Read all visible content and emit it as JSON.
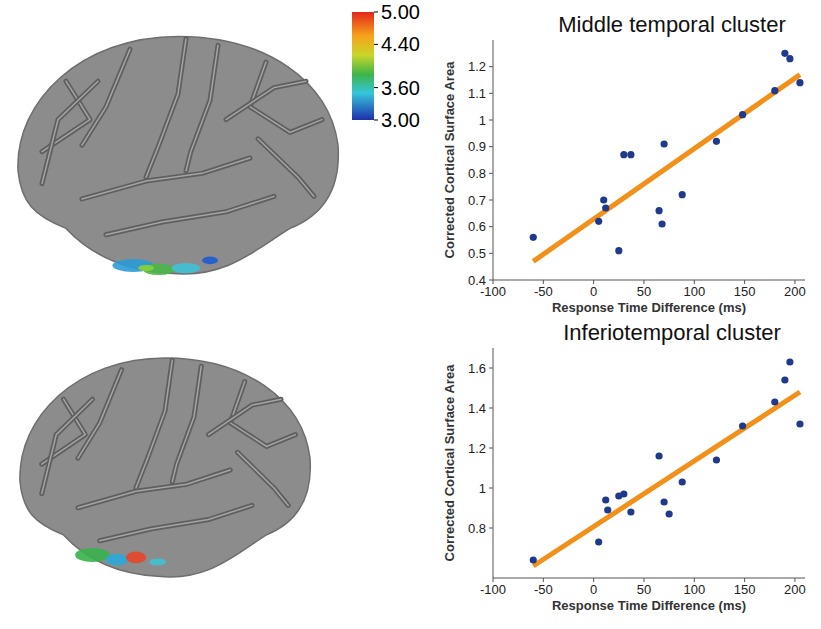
{
  "chart_data": [
    {
      "type": "scatter",
      "title": "Middle temporal cluster",
      "x_label": "Response Time Difference (ms)",
      "y_label": "Corrected Cortical Surface Area",
      "x": [
        -60,
        5,
        10,
        12,
        25,
        30,
        37,
        65,
        68,
        70,
        88,
        122,
        148,
        180,
        190,
        195,
        205
      ],
      "values": [
        0.56,
        0.62,
        0.7,
        0.67,
        0.51,
        0.87,
        0.87,
        0.66,
        0.61,
        0.91,
        0.72,
        0.92,
        1.02,
        1.11,
        1.25,
        1.23,
        1.14
      ],
      "color": "#1f3a8a",
      "fit": {
        "x": [
          -60,
          205
        ],
        "values": [
          0.47,
          1.17
        ],
        "color": "#f39019"
      },
      "xlim": [
        -100,
        210
      ],
      "xticks": [
        -100,
        -50,
        0,
        50,
        100,
        150,
        200
      ],
      "ylim": [
        0.4,
        1.3
      ],
      "yticks": [
        0.4,
        0.5,
        0.6,
        0.7,
        0.8,
        0.9,
        1,
        1.1,
        1.2
      ]
    },
    {
      "type": "scatter",
      "title": "Inferiotemporal cluster",
      "x_label": "Response Time Difference (ms)",
      "y_label": "Corrected Cortical Surface Area",
      "x": [
        -60,
        5,
        12,
        14,
        25,
        30,
        37,
        65,
        70,
        75,
        88,
        122,
        148,
        180,
        190,
        195,
        205
      ],
      "values": [
        0.64,
        0.73,
        0.94,
        0.89,
        0.96,
        0.97,
        0.88,
        1.16,
        0.93,
        0.87,
        1.03,
        1.14,
        1.31,
        1.43,
        1.54,
        1.63,
        1.32
      ],
      "color": "#1f3a8a",
      "fit": {
        "x": [
          -60,
          205
        ],
        "values": [
          0.61,
          1.48
        ],
        "color": "#f39019"
      },
      "xlim": [
        -100,
        210
      ],
      "xticks": [
        -100,
        -50,
        0,
        50,
        100,
        150,
        200
      ],
      "ylim": [
        0.55,
        1.7
      ],
      "yticks": [
        0.8,
        1,
        1.2,
        1.4,
        1.6
      ]
    }
  ],
  "colorbar": {
    "range": [
      3,
      5
    ],
    "ticks": [
      {
        "value": 5,
        "label": "5.00"
      },
      {
        "value": 4.4,
        "label": "4.40"
      },
      {
        "value": 3.6,
        "label": "3.60"
      },
      {
        "value": 3,
        "label": "3.00"
      }
    ]
  }
}
